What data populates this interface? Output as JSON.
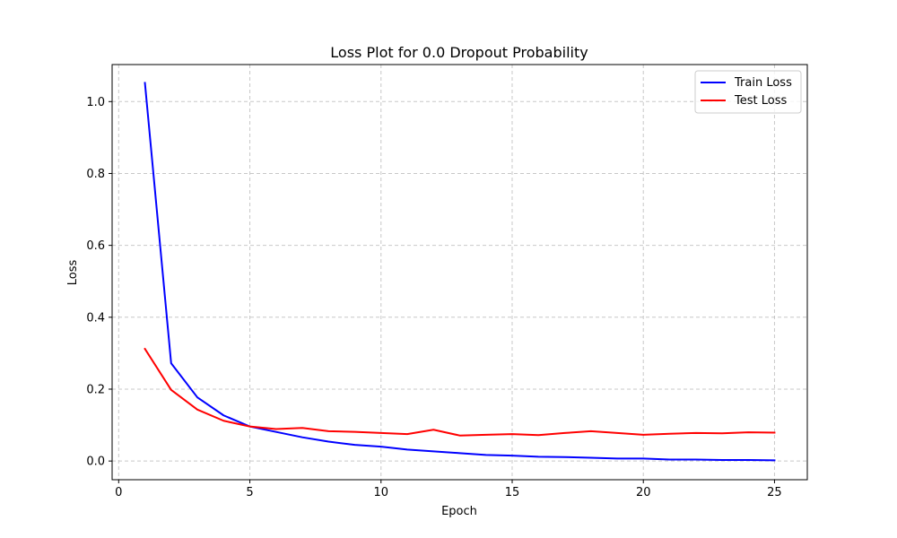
{
  "chart_data": {
    "type": "line",
    "title": "Loss Plot for 0.0 Dropout Probability",
    "xlabel": "Epoch",
    "ylabel": "Loss",
    "xlim": [
      -0.25,
      26.25
    ],
    "ylim": [
      -0.052,
      1.103
    ],
    "xticks": [
      0,
      5,
      10,
      15,
      20,
      25
    ],
    "yticks": [
      0.0,
      0.2,
      0.4,
      0.6,
      0.8,
      1.0
    ],
    "xtick_labels": [
      "0",
      "5",
      "10",
      "15",
      "20",
      "25"
    ],
    "ytick_labels": [
      "0.0",
      "0.2",
      "0.4",
      "0.6",
      "0.8",
      "1.0"
    ],
    "grid": true,
    "legend_position": "top-right",
    "x": [
      1,
      2,
      3,
      4,
      5,
      6,
      7,
      8,
      9,
      10,
      11,
      12,
      13,
      14,
      15,
      16,
      17,
      18,
      19,
      20,
      21,
      22,
      23,
      24,
      25
    ],
    "series": [
      {
        "name": "Train Loss",
        "color": "#0000ff",
        "values": [
          1.052,
          0.272,
          0.177,
          0.127,
          0.096,
          0.081,
          0.066,
          0.054,
          0.045,
          0.04,
          0.032,
          0.027,
          0.022,
          0.017,
          0.015,
          0.012,
          0.011,
          0.009,
          0.007,
          0.007,
          0.004,
          0.004,
          0.003,
          0.003,
          0.002
        ]
      },
      {
        "name": "Test Loss",
        "color": "#ff0000",
        "values": [
          0.312,
          0.198,
          0.143,
          0.112,
          0.096,
          0.089,
          0.092,
          0.083,
          0.081,
          0.078,
          0.075,
          0.087,
          0.071,
          0.073,
          0.075,
          0.072,
          0.078,
          0.083,
          0.078,
          0.073,
          0.076,
          0.078,
          0.077,
          0.08,
          0.079
        ]
      }
    ]
  }
}
